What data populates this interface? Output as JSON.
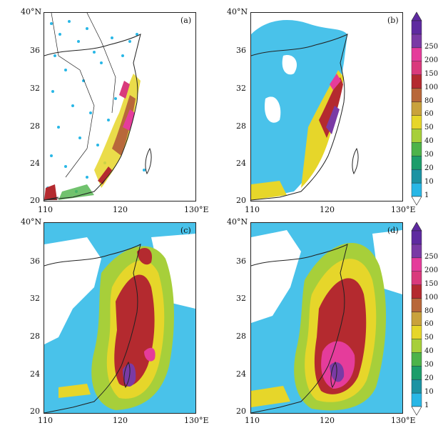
{
  "panels": [
    {
      "id": "a",
      "label": "(a)"
    },
    {
      "id": "b",
      "label": "(b)"
    },
    {
      "id": "c",
      "label": "(c)"
    },
    {
      "id": "d",
      "label": "(d)"
    }
  ],
  "axes": {
    "lat_ticks": [
      "40°N",
      "36",
      "32",
      "28",
      "24",
      "20"
    ],
    "lon_ticks": [
      "110",
      "120",
      "130°E"
    ],
    "lat_range": [
      20,
      40
    ],
    "lon_range": [
      110,
      130
    ]
  },
  "colorbar": {
    "levels": [
      "1",
      "10",
      "20",
      "30",
      "40",
      "50",
      "60",
      "80",
      "100",
      "150",
      "200",
      "250"
    ],
    "colors": [
      "#29b7e6",
      "#1c93a3",
      "#1d9d6b",
      "#4db34a",
      "#a7cf3a",
      "#e6d62a",
      "#c9a23c",
      "#b8683a",
      "#b42a2f",
      "#d93a7c",
      "#e53c9b",
      "#7a3aa5",
      "#5e2aa0"
    ]
  }
}
